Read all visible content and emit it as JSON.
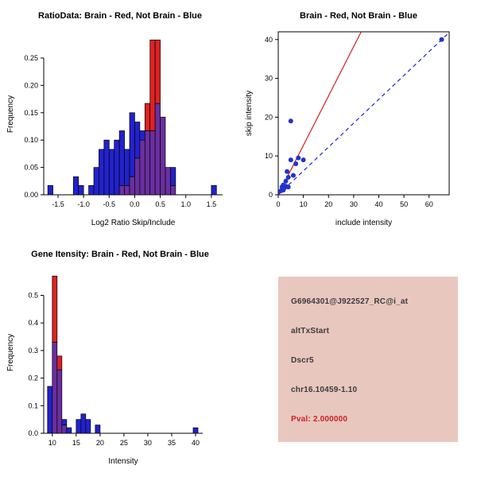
{
  "window": {
    "background": "#ffffff"
  },
  "colors": {
    "hist_blue": "#2222cc",
    "hist_red": "#dd2222",
    "hist_overlap": "#6a2fa0",
    "scatter_point": "#2233cc",
    "fit_line_red": "#cc2222",
    "fit_line_blue": "#2222cc",
    "axis": "#000000",
    "info_bg": "#e8c7bf",
    "info_text": "#3b3b3b",
    "pval_text": "#cc2222"
  },
  "chart_data": [
    {
      "id": "ratio_hist",
      "type": "bar",
      "title": "RatioData: Brain - Red, Not Brain - Blue",
      "xlabel": "Log2 Ratio Skip/Include",
      "ylabel": "Frequency",
      "legend": {
        "red": "Brain",
        "blue": "Not Brain"
      },
      "xlim": [
        -1.78,
        1.72
      ],
      "ylim": [
        0,
        0.295
      ],
      "xticks": [
        -1.5,
        -1.0,
        -0.5,
        0.0,
        0.5,
        1.0,
        1.5
      ],
      "xtick_labels": [
        "-1.5",
        "-1.0",
        "-0.5",
        "0.0",
        "0.5",
        "1.0",
        "1.5"
      ],
      "yticks": [
        0,
        0.05,
        0.1,
        0.15,
        0.2,
        0.25
      ],
      "ytick_labels": [
        "0.00",
        "0.05",
        "0.10",
        "0.15",
        "0.20",
        "0.25"
      ],
      "bin_width": 0.1,
      "bins": [
        {
          "x": -1.7,
          "blue": 0.017,
          "red": 0
        },
        {
          "x": -1.2,
          "blue": 0.033,
          "red": 0
        },
        {
          "x": -1.1,
          "blue": 0.017,
          "red": 0
        },
        {
          "x": -0.9,
          "blue": 0.017,
          "red": 0
        },
        {
          "x": -0.8,
          "blue": 0.05,
          "red": 0
        },
        {
          "x": -0.7,
          "blue": 0.083,
          "red": 0
        },
        {
          "x": -0.6,
          "blue": 0.1,
          "red": 0
        },
        {
          "x": -0.5,
          "blue": 0.083,
          "red": 0
        },
        {
          "x": -0.4,
          "blue": 0.1,
          "red": 0
        },
        {
          "x": -0.3,
          "blue": 0.117,
          "red": 0.017
        },
        {
          "x": -0.2,
          "blue": 0.083,
          "red": 0.017
        },
        {
          "x": -0.1,
          "blue": 0.15,
          "red": 0.033
        },
        {
          "x": 0.0,
          "blue": 0.133,
          "red": 0.067
        },
        {
          "x": 0.1,
          "blue": 0.117,
          "red": 0.1
        },
        {
          "x": 0.2,
          "blue": 0.117,
          "red": 0.167
        },
        {
          "x": 0.3,
          "blue": 0.117,
          "red": 0.283
        },
        {
          "x": 0.4,
          "blue": 0.167,
          "red": 0.283
        },
        {
          "x": 0.5,
          "blue": 0.142,
          "red": 0.142
        },
        {
          "x": 0.6,
          "blue": 0.05,
          "red": 0.05
        },
        {
          "x": 0.7,
          "blue": 0.05,
          "red": 0.017
        },
        {
          "x": 1.5,
          "blue": 0.017,
          "red": 0
        }
      ]
    },
    {
      "id": "intensity_scatter",
      "type": "scatter",
      "title": "Brain - Red, Not Brain - Blue",
      "xlabel": "include intensity",
      "ylabel": "skip intensity",
      "xlim": [
        0,
        68
      ],
      "ylim": [
        0,
        42
      ],
      "xticks": [
        0,
        10,
        20,
        30,
        40,
        50,
        60
      ],
      "xtick_labels": [
        "0",
        "10",
        "20",
        "30",
        "40",
        "50",
        "60"
      ],
      "yticks": [
        0,
        10,
        20,
        30,
        40
      ],
      "ytick_labels": [
        "0",
        "10",
        "20",
        "30",
        "40"
      ],
      "points": [
        [
          1,
          1
        ],
        [
          1.5,
          2
        ],
        [
          2,
          1.2
        ],
        [
          2,
          2.5
        ],
        [
          2.5,
          1.8
        ],
        [
          3,
          2.2
        ],
        [
          3,
          3.5
        ],
        [
          3.5,
          6
        ],
        [
          4,
          2
        ],
        [
          4,
          4.5
        ],
        [
          5,
          9
        ],
        [
          5,
          19
        ],
        [
          6,
          5
        ],
        [
          7,
          8
        ],
        [
          8,
          9.5
        ],
        [
          10,
          9
        ],
        [
          65,
          40
        ]
      ],
      "red_line": [
        [
          0,
          0
        ],
        [
          33,
          42
        ]
      ],
      "blue_dashed_line": [
        [
          0,
          0
        ],
        [
          68.3,
          42
        ]
      ]
    },
    {
      "id": "gene_intensity_hist",
      "type": "bar",
      "title": "Gene Itensity: Brain - Red, Not Brain - Blue",
      "xlabel": "Intensity",
      "ylabel": "Frequency",
      "legend": {
        "red": "Brain",
        "blue": "Not Brain"
      },
      "xlim": [
        8.2,
        41.5
      ],
      "ylim": [
        0,
        0.585
      ],
      "xticks": [
        10,
        15,
        20,
        25,
        30,
        35,
        40
      ],
      "xtick_labels": [
        "10",
        "15",
        "20",
        "25",
        "30",
        "35",
        "40"
      ],
      "yticks": [
        0,
        0.1,
        0.2,
        0.3,
        0.4,
        0.5
      ],
      "ytick_labels": [
        "0.0",
        "0.1",
        "0.2",
        "0.3",
        "0.4",
        "0.5"
      ],
      "bin_width": 1,
      "bins": [
        {
          "x": 9,
          "blue": 0.17,
          "red": 0
        },
        {
          "x": 10,
          "blue": 0.33,
          "red": 0.57
        },
        {
          "x": 11,
          "blue": 0.23,
          "red": 0.28
        },
        {
          "x": 12,
          "blue": 0.05,
          "red": 0.03
        },
        {
          "x": 13,
          "blue": 0.02,
          "red": 0
        },
        {
          "x": 15,
          "blue": 0.05,
          "red": 0
        },
        {
          "x": 16,
          "blue": 0.07,
          "red": 0
        },
        {
          "x": 17,
          "blue": 0.05,
          "red": 0
        },
        {
          "x": 19,
          "blue": 0.03,
          "red": 0
        },
        {
          "x": 39.5,
          "blue": 0.02,
          "red": 0
        }
      ]
    }
  ],
  "info_box": {
    "lines": [
      "G6964301@J922527_RC@i_at",
      "altTxStart",
      "Dscr5",
      "chr16.10459-1.10"
    ],
    "pval": "Pval: 2.000000"
  }
}
